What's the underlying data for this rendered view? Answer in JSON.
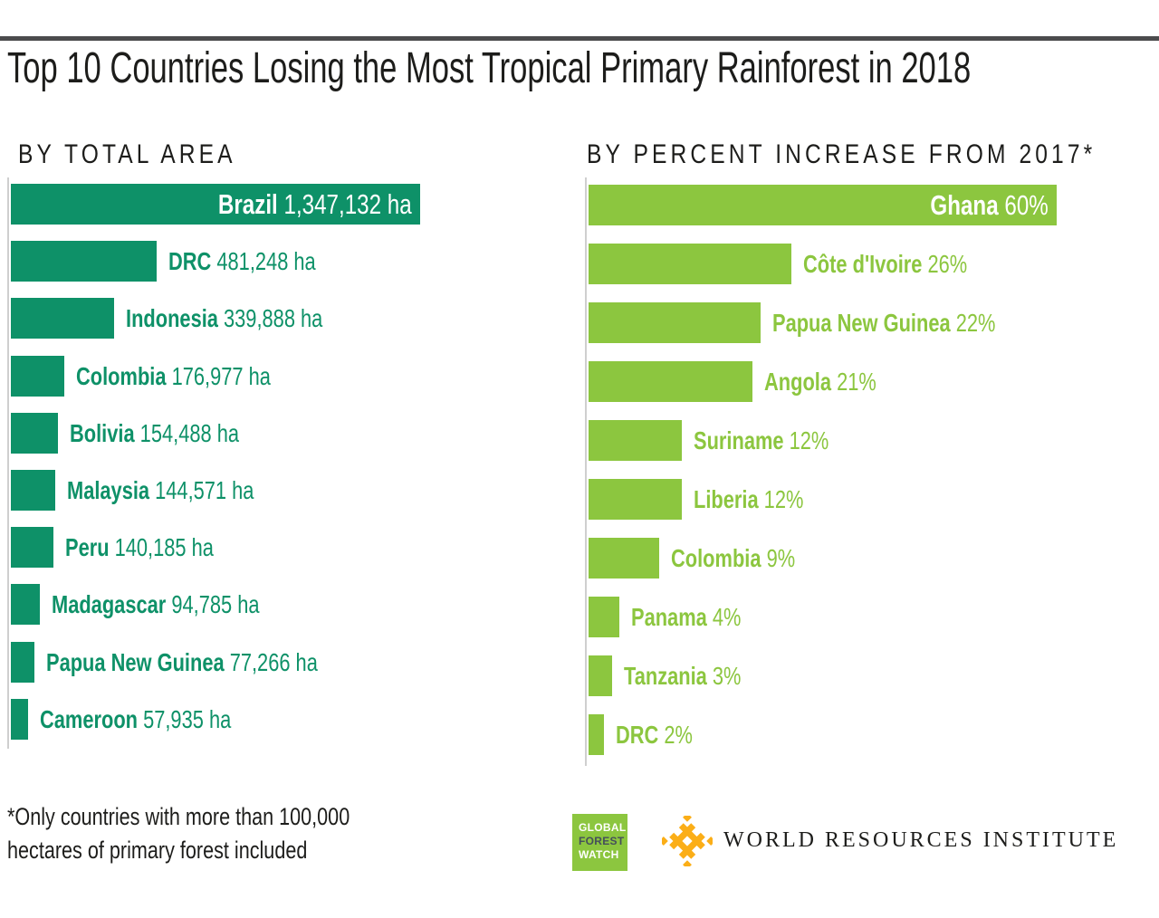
{
  "title": "Top 10 Countries Losing the Most Tropical Primary Rainforest in 2018",
  "chart_data": [
    {
      "type": "bar",
      "orientation": "horizontal",
      "title": "BY TOTAL AREA",
      "unit": "ha",
      "categories": [
        "Brazil",
        "DRC",
        "Indonesia",
        "Colombia",
        "Bolivia",
        "Malaysia",
        "Peru",
        "Madagascar",
        "Papua New Guinea",
        "Cameroon"
      ],
      "values": [
        1347132,
        481248,
        339888,
        176977,
        154488,
        144571,
        140185,
        94785,
        77266,
        57935
      ],
      "labels": [
        "1,347,132 ha",
        "481,248 ha",
        "339,888 ha",
        "176,977 ha",
        "154,488 ha",
        "144,571 ha",
        "140,185 ha",
        "94,785 ha",
        "77,266 ha",
        "57,935 ha"
      ],
      "xlim": [
        0,
        1347132
      ],
      "grid": false,
      "legend": "none",
      "bar_color": "#0E9168",
      "label_color": "#0E9168",
      "inside_label_color": "#FFFFFF",
      "axis_color": "#CFCFCF",
      "label_position": "first bar label inside right, others outside right"
    },
    {
      "type": "bar",
      "orientation": "horizontal",
      "title": "BY PERCENT INCREASE FROM 2017*",
      "unit": "%",
      "categories": [
        "Ghana",
        "Côte d'Ivoire",
        "Papua New Guinea",
        "Angola",
        "Suriname",
        "Liberia",
        "Colombia",
        "Panama",
        "Tanzania",
        "DRC"
      ],
      "values": [
        60,
        26,
        22,
        21,
        12,
        12,
        9,
        4,
        3,
        2
      ],
      "labels": [
        "60%",
        "26%",
        "22%",
        "21%",
        "12%",
        "12%",
        "9%",
        "4%",
        "3%",
        "2%"
      ],
      "xlim": [
        0,
        60
      ],
      "grid": false,
      "legend": "none",
      "bar_color": "#8CC63F",
      "label_color": "#8CC63F",
      "inside_label_color": "#FFFFFF",
      "axis_color": "#CFCFCF",
      "label_position": "first bar label inside right, others outside right"
    }
  ],
  "footnote": {
    "line1": "*Only countries with more than 100,000",
    "line2": "hectares of primary forest included"
  },
  "footer": {
    "gfw_logo": {
      "line1": "GLOBAL",
      "line2": "FOREST",
      "line3": "WATCH",
      "bg_color": "#8CC63F",
      "mid_text_color": "#454F5B"
    },
    "wri_logo": {
      "text": "WORLD RESOURCES INSTITUTE",
      "mark_color": "#FBAE17"
    }
  },
  "colors": {
    "teal": "#0E9168",
    "green": "#8CC63F",
    "ink": "#1D1D1B",
    "axis": "#CFCFCF",
    "top_divider": "#4B4B4D"
  }
}
